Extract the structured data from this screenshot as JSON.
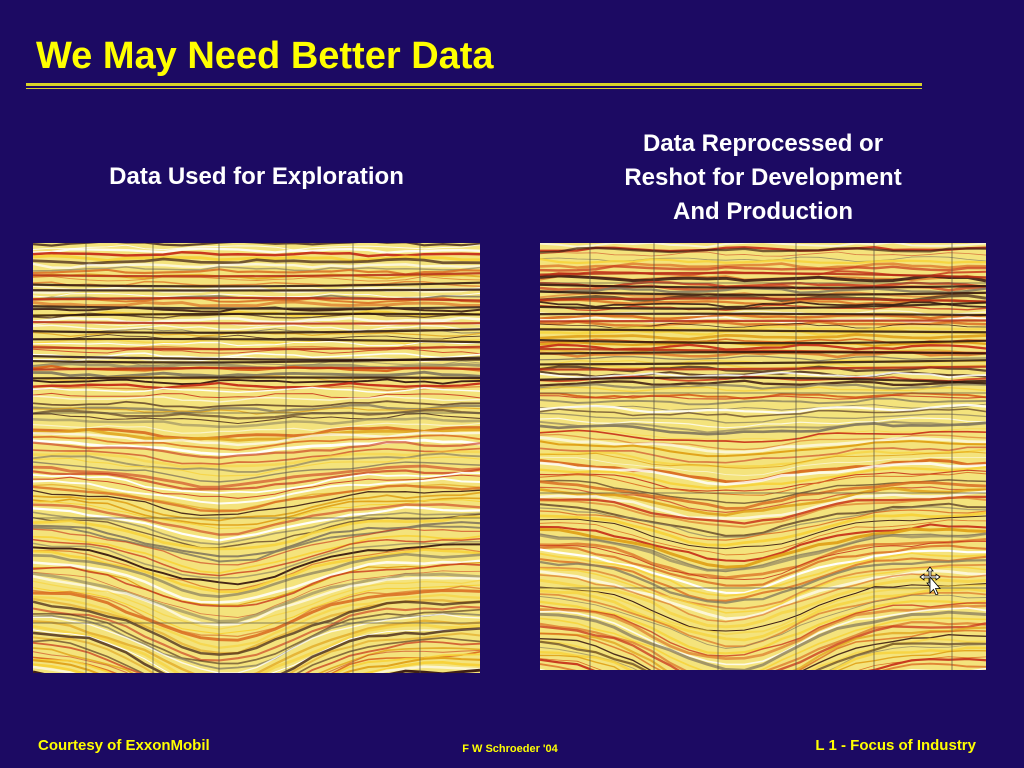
{
  "title": "We May Need Better Data",
  "panels": {
    "left_caption": "Data Used for Exploration",
    "right_caption_lines": [
      "Data Reprocessed or",
      "Reshot for Development",
      "And Production"
    ],
    "left_image_icon": "seismic-section-image",
    "right_image_icon": "seismic-section-image"
  },
  "footer": {
    "left": "Courtesy of ExxonMobil",
    "center": "F W Schroeder  '04",
    "right": "L 1 -  Focus of Industry"
  },
  "colors": {
    "background": "#1c0a63",
    "title": "#ffff00",
    "rule": "#d9d32a",
    "caption": "#ffffff",
    "footer": "#ffff00"
  },
  "icons": {
    "cursor": "move-cursor-icon"
  }
}
